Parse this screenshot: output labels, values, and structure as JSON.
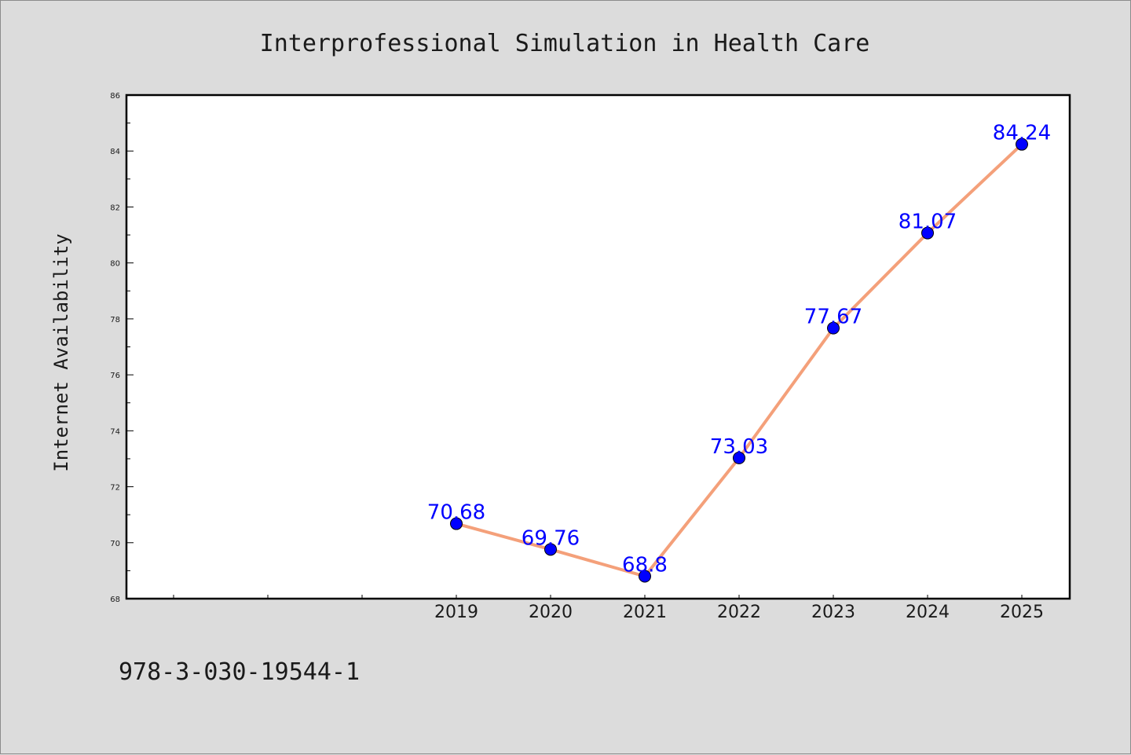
{
  "chart_data": {
    "type": "line",
    "title": "Interprofessional Simulation in Health Care",
    "xlabel": "",
    "ylabel": "Internet Availability",
    "categories": [
      "2019",
      "2020",
      "2021",
      "2022",
      "2023",
      "2024",
      "2025"
    ],
    "series": [
      {
        "values": [
          70.68,
          69.76,
          68.8,
          73.03,
          77.67,
          81.07,
          84.24
        ],
        "labels": [
          "70.68",
          "69.76",
          "68.8",
          "73.03",
          "77.67",
          "81.07",
          "84.24"
        ],
        "line_color": "#f4a07a",
        "marker_color": "#0000ff"
      }
    ],
    "ylim": [
      68,
      86
    ],
    "yticks": [
      68,
      70,
      72,
      74,
      76,
      78,
      80,
      82,
      84,
      86
    ],
    "x_leading_slots": 3,
    "grid": false,
    "legend": "none"
  },
  "footnote": "978-3-030-19544-1"
}
